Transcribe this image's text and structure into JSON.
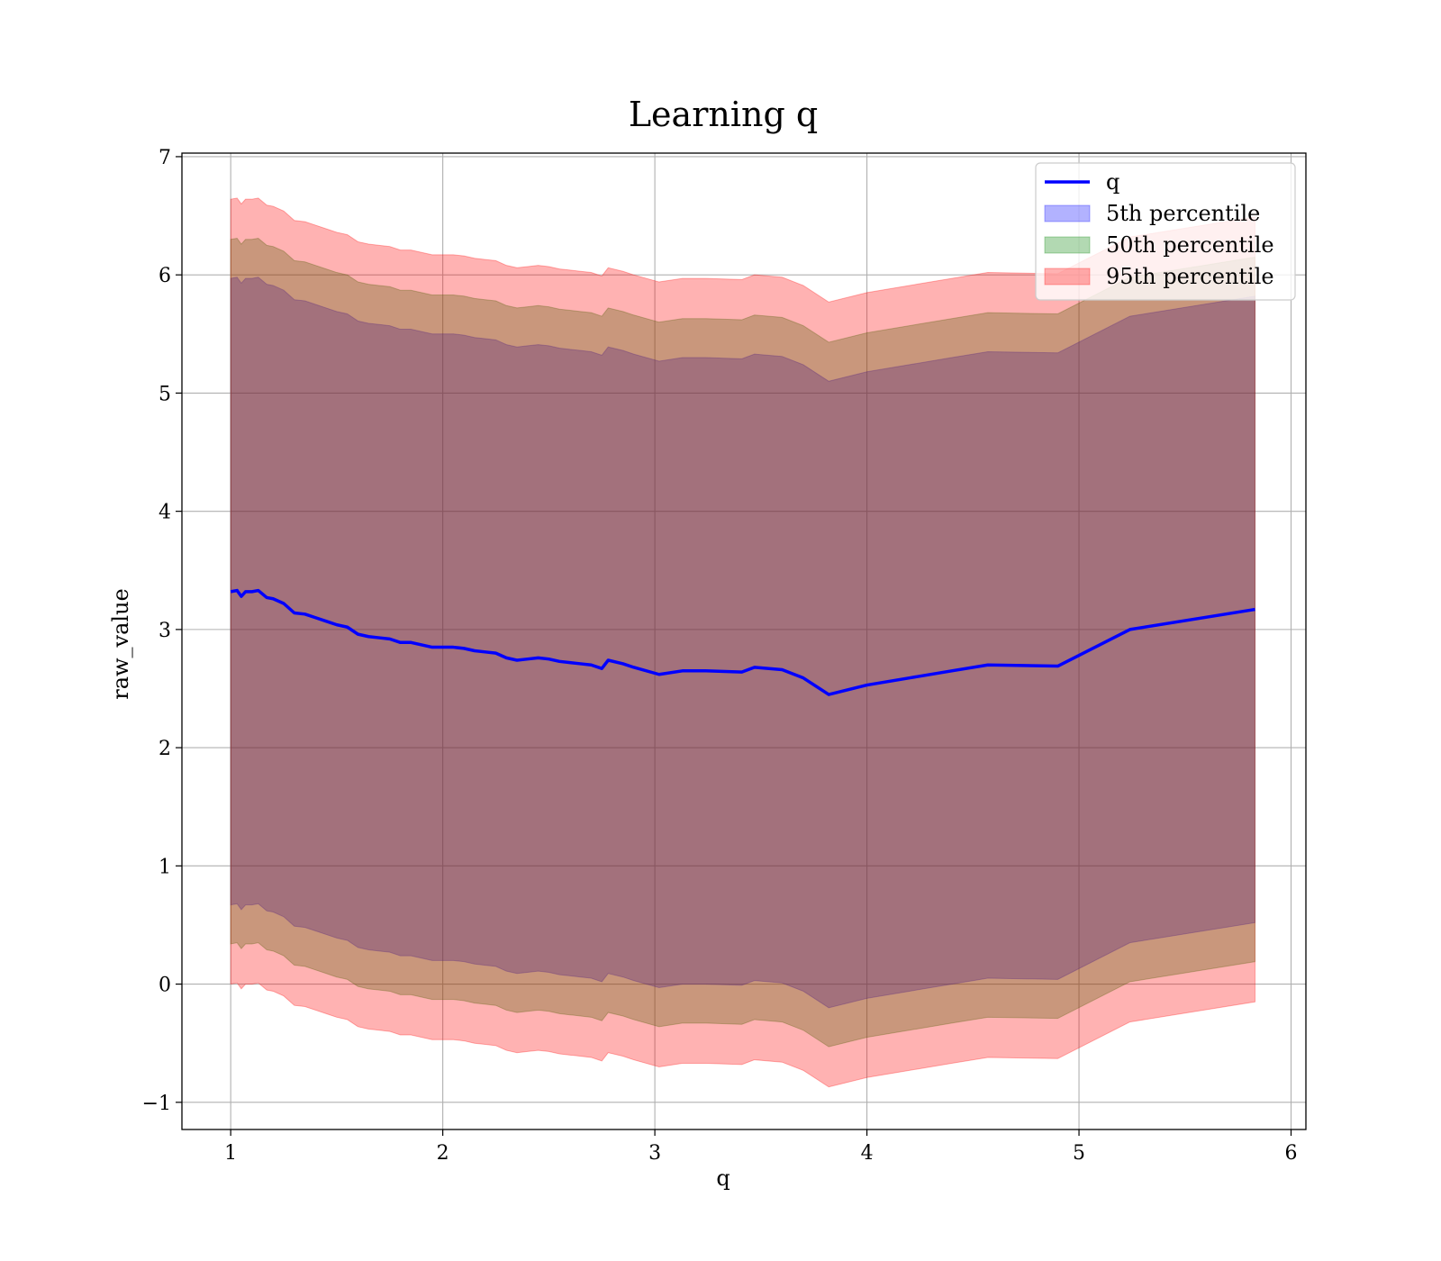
{
  "chart_data": {
    "type": "line",
    "title": "Learning q",
    "xlabel": "q",
    "ylabel": "raw_value",
    "xlim": [
      0.77,
      6.07
    ],
    "ylim": [
      -1.23,
      7.03
    ],
    "xticks": [
      1,
      2,
      3,
      4,
      5,
      6
    ],
    "yticks": [
      -1,
      0,
      1,
      2,
      3,
      4,
      5,
      6,
      7
    ],
    "xtick_labels": [
      "1",
      "2",
      "3",
      "4",
      "5",
      "6"
    ],
    "ytick_labels": [
      "−1",
      "0",
      "1",
      "2",
      "3",
      "4",
      "5",
      "6",
      "7"
    ],
    "grid": true,
    "legend_position": "top-right",
    "line": {
      "name": "q",
      "color": "#0000ff",
      "x": [
        1.0,
        1.03,
        1.05,
        1.07,
        1.1,
        1.13,
        1.17,
        1.2,
        1.25,
        1.3,
        1.35,
        1.4,
        1.45,
        1.5,
        1.55,
        1.6,
        1.65,
        1.7,
        1.75,
        1.8,
        1.85,
        1.9,
        1.95,
        2.0,
        2.05,
        2.1,
        2.15,
        2.2,
        2.25,
        2.3,
        2.35,
        2.4,
        2.45,
        2.5,
        2.55,
        2.6,
        2.65,
        2.7,
        2.75,
        2.78,
        2.85,
        2.9,
        3.02,
        3.13,
        3.24,
        3.41,
        3.47,
        3.6,
        3.7,
        3.82,
        4.0,
        4.2,
        4.4,
        4.57,
        4.9,
        5.24,
        5.83
      ],
      "y": [
        3.32,
        3.33,
        3.28,
        3.32,
        3.32,
        3.33,
        3.27,
        3.26,
        3.22,
        3.14,
        3.13,
        3.1,
        3.07,
        3.04,
        3.02,
        2.96,
        2.94,
        2.93,
        2.92,
        2.89,
        2.89,
        2.87,
        2.85,
        2.85,
        2.85,
        2.84,
        2.82,
        2.81,
        2.8,
        2.76,
        2.74,
        2.75,
        2.76,
        2.75,
        2.73,
        2.72,
        2.71,
        2.7,
        2.67,
        2.74,
        2.71,
        2.68,
        2.62,
        2.65,
        2.65,
        2.64,
        2.68,
        2.66,
        2.59,
        2.45,
        2.53,
        2.59,
        2.65,
        2.7,
        2.69,
        3.0,
        3.17
      ]
    },
    "bands": [
      {
        "name": "5th percentile",
        "color": "#0000ff",
        "opacity": 0.3,
        "offset_upper": 2.65,
        "offset_lower": 2.65
      },
      {
        "name": "50th percentile",
        "color": "#008000",
        "opacity": 0.3,
        "offset_upper": 2.98,
        "offset_lower": 2.98
      },
      {
        "name": "95th percentile",
        "color": "#ff0000",
        "opacity": 0.3,
        "offset_upper": 3.32,
        "offset_lower": 3.32
      }
    ],
    "legend": [
      "q",
      "5th percentile",
      "50th percentile",
      "95th percentile"
    ]
  }
}
